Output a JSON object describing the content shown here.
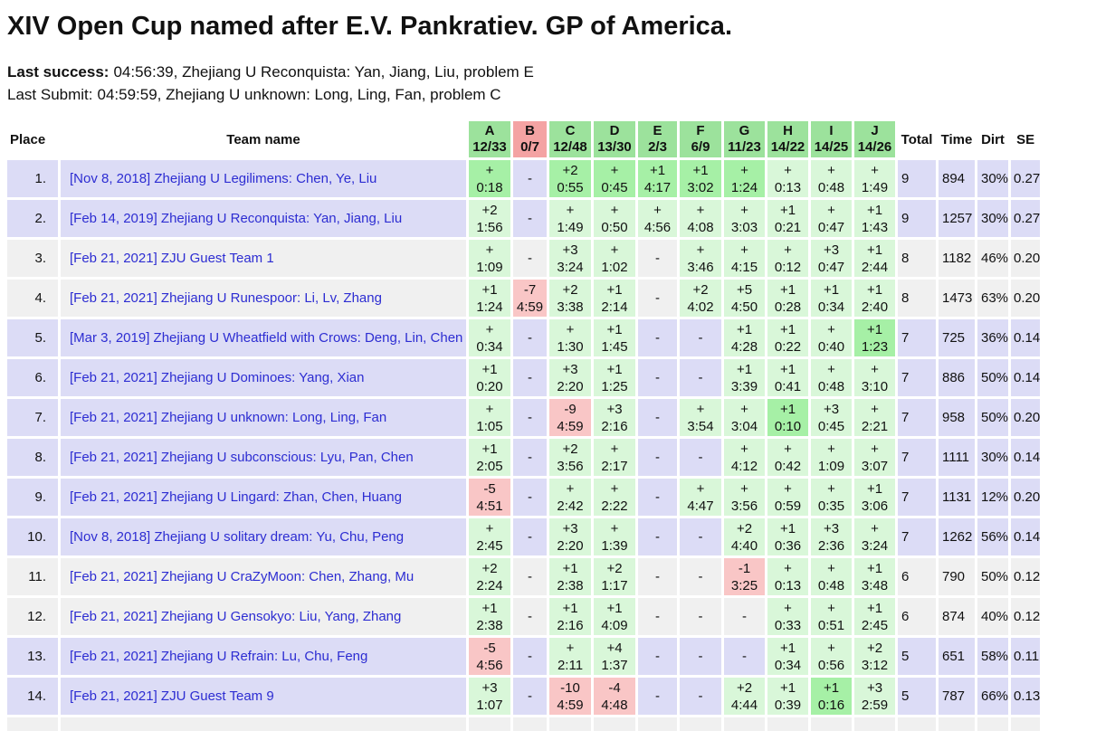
{
  "page": {
    "title": "XIV Open Cup named after E.V. Pankratiev. GP of America.",
    "last_success": {
      "label": "Last success:",
      "text": "04:56:39, Zhejiang U Reconquista: Yan, Jiang, Liu, problem E"
    },
    "last_submit": {
      "label": "Last Submit:",
      "text": "04:59:59, Zhejiang U unknown: Long, Ling, Fan, problem C"
    }
  },
  "colors": {
    "header_solved_green": "#9ce29c",
    "header_unsolved_red": "#f4a3a3",
    "cell_solved_green": "#d9f7d9",
    "cell_first_solved_green": "#a6f0a6",
    "cell_failed_red": "#f9c6c6",
    "row_lavender": "#dcdcf6",
    "row_grey": "#f0f0f0",
    "team_link_blue": "#2d2dd2"
  },
  "table": {
    "headers": {
      "place": "Place",
      "team": "Team name",
      "total": "Total",
      "time": "Time",
      "dirt": "Dirt",
      "se": "SE"
    },
    "problems": [
      {
        "letter": "A",
        "stat": "12/33",
        "state": "solved"
      },
      {
        "letter": "B",
        "stat": "0/7",
        "state": "unsolved"
      },
      {
        "letter": "C",
        "stat": "12/48",
        "state": "solved"
      },
      {
        "letter": "D",
        "stat": "13/30",
        "state": "solved"
      },
      {
        "letter": "E",
        "stat": "2/3",
        "state": "solved"
      },
      {
        "letter": "F",
        "stat": "6/9",
        "state": "solved"
      },
      {
        "letter": "G",
        "stat": "11/23",
        "state": "solved"
      },
      {
        "letter": "H",
        "stat": "14/22",
        "state": "solved"
      },
      {
        "letter": "I",
        "stat": "14/25",
        "state": "solved"
      },
      {
        "letter": "J",
        "stat": "14/26",
        "state": "solved"
      }
    ],
    "rows": [
      {
        "place": "1.",
        "team": "[Nov 8, 2018] Zhejiang U Legilimens: Chen, Ye, Liu",
        "shade": "lav",
        "cells": [
          {
            "m": "+",
            "t": "0:18",
            "s": "first"
          },
          {
            "m": "-",
            "t": "",
            "s": "none"
          },
          {
            "m": "+2",
            "t": "0:55",
            "s": "first"
          },
          {
            "m": "+",
            "t": "0:45",
            "s": "first"
          },
          {
            "m": "+1",
            "t": "4:17",
            "s": "first"
          },
          {
            "m": "+1",
            "t": "3:02",
            "s": "first"
          },
          {
            "m": "+",
            "t": "1:24",
            "s": "first"
          },
          {
            "m": "+",
            "t": "0:13",
            "s": "ok"
          },
          {
            "m": "+",
            "t": "0:48",
            "s": "ok"
          },
          {
            "m": "+",
            "t": "1:49",
            "s": "ok"
          }
        ],
        "total": "9",
        "time": "894",
        "dirt": "30%",
        "se": "0.27"
      },
      {
        "place": "2.",
        "team": "[Feb 14, 2019] Zhejiang U Reconquista: Yan, Jiang, Liu",
        "shade": "lav",
        "cells": [
          {
            "m": "+2",
            "t": "1:56",
            "s": "ok"
          },
          {
            "m": "-",
            "t": "",
            "s": "none"
          },
          {
            "m": "+",
            "t": "1:49",
            "s": "ok"
          },
          {
            "m": "+",
            "t": "0:50",
            "s": "ok"
          },
          {
            "m": "+",
            "t": "4:56",
            "s": "ok"
          },
          {
            "m": "+",
            "t": "4:08",
            "s": "ok"
          },
          {
            "m": "+",
            "t": "3:03",
            "s": "ok"
          },
          {
            "m": "+1",
            "t": "0:21",
            "s": "ok"
          },
          {
            "m": "+",
            "t": "0:47",
            "s": "ok"
          },
          {
            "m": "+1",
            "t": "1:43",
            "s": "ok"
          }
        ],
        "total": "9",
        "time": "1257",
        "dirt": "30%",
        "se": "0.27"
      },
      {
        "place": "3.",
        "team": "[Feb 21, 2021] ZJU Guest Team 1",
        "shade": "grey",
        "cells": [
          {
            "m": "+",
            "t": "1:09",
            "s": "ok"
          },
          {
            "m": "-",
            "t": "",
            "s": "none"
          },
          {
            "m": "+3",
            "t": "3:24",
            "s": "ok"
          },
          {
            "m": "+",
            "t": "1:02",
            "s": "ok"
          },
          {
            "m": "-",
            "t": "",
            "s": "none"
          },
          {
            "m": "+",
            "t": "3:46",
            "s": "ok"
          },
          {
            "m": "+",
            "t": "4:15",
            "s": "ok"
          },
          {
            "m": "+",
            "t": "0:12",
            "s": "ok"
          },
          {
            "m": "+3",
            "t": "0:47",
            "s": "ok"
          },
          {
            "m": "+1",
            "t": "2:44",
            "s": "ok"
          }
        ],
        "total": "8",
        "time": "1182",
        "dirt": "46%",
        "se": "0.20"
      },
      {
        "place": "4.",
        "team": "[Feb 21, 2021] Zhejiang U Runespoor: Li, Lv, Zhang",
        "shade": "grey",
        "cells": [
          {
            "m": "+1",
            "t": "1:24",
            "s": "ok"
          },
          {
            "m": "-7",
            "t": "4:59",
            "s": "fail"
          },
          {
            "m": "+2",
            "t": "3:38",
            "s": "ok"
          },
          {
            "m": "+1",
            "t": "2:14",
            "s": "ok"
          },
          {
            "m": "-",
            "t": "",
            "s": "none"
          },
          {
            "m": "+2",
            "t": "4:02",
            "s": "ok"
          },
          {
            "m": "+5",
            "t": "4:50",
            "s": "ok"
          },
          {
            "m": "+1",
            "t": "0:28",
            "s": "ok"
          },
          {
            "m": "+1",
            "t": "0:34",
            "s": "ok"
          },
          {
            "m": "+1",
            "t": "2:40",
            "s": "ok"
          }
        ],
        "total": "8",
        "time": "1473",
        "dirt": "63%",
        "se": "0.20"
      },
      {
        "place": "5.",
        "team": "[Mar 3, 2019] Zhejiang U Wheatfield with Crows: Deng, Lin, Chen",
        "shade": "lav",
        "cells": [
          {
            "m": "+",
            "t": "0:34",
            "s": "ok"
          },
          {
            "m": "-",
            "t": "",
            "s": "none"
          },
          {
            "m": "+",
            "t": "1:30",
            "s": "ok"
          },
          {
            "m": "+1",
            "t": "1:45",
            "s": "ok"
          },
          {
            "m": "-",
            "t": "",
            "s": "none"
          },
          {
            "m": "-",
            "t": "",
            "s": "none"
          },
          {
            "m": "+1",
            "t": "4:28",
            "s": "ok"
          },
          {
            "m": "+1",
            "t": "0:22",
            "s": "ok"
          },
          {
            "m": "+",
            "t": "0:40",
            "s": "ok"
          },
          {
            "m": "+1",
            "t": "1:23",
            "s": "first"
          }
        ],
        "total": "7",
        "time": "725",
        "dirt": "36%",
        "se": "0.14"
      },
      {
        "place": "6.",
        "team": "[Feb 21, 2021] Zhejiang U Dominoes: Yang, Xian",
        "shade": "lav",
        "cells": [
          {
            "m": "+1",
            "t": "0:20",
            "s": "ok"
          },
          {
            "m": "-",
            "t": "",
            "s": "none"
          },
          {
            "m": "+3",
            "t": "2:20",
            "s": "ok"
          },
          {
            "m": "+1",
            "t": "1:25",
            "s": "ok"
          },
          {
            "m": "-",
            "t": "",
            "s": "none"
          },
          {
            "m": "-",
            "t": "",
            "s": "none"
          },
          {
            "m": "+1",
            "t": "3:39",
            "s": "ok"
          },
          {
            "m": "+1",
            "t": "0:41",
            "s": "ok"
          },
          {
            "m": "+",
            "t": "0:48",
            "s": "ok"
          },
          {
            "m": "+",
            "t": "3:10",
            "s": "ok"
          }
        ],
        "total": "7",
        "time": "886",
        "dirt": "50%",
        "se": "0.14"
      },
      {
        "place": "7.",
        "team": "[Feb 21, 2021] Zhejiang U unknown: Long, Ling, Fan",
        "shade": "lav",
        "cells": [
          {
            "m": "+",
            "t": "1:05",
            "s": "ok"
          },
          {
            "m": "-",
            "t": "",
            "s": "none"
          },
          {
            "m": "-9",
            "t": "4:59",
            "s": "fail"
          },
          {
            "m": "+3",
            "t": "2:16",
            "s": "ok"
          },
          {
            "m": "-",
            "t": "",
            "s": "none"
          },
          {
            "m": "+",
            "t": "3:54",
            "s": "ok"
          },
          {
            "m": "+",
            "t": "3:04",
            "s": "ok"
          },
          {
            "m": "+1",
            "t": "0:10",
            "s": "first"
          },
          {
            "m": "+3",
            "t": "0:45",
            "s": "ok"
          },
          {
            "m": "+",
            "t": "2:21",
            "s": "ok"
          }
        ],
        "total": "7",
        "time": "958",
        "dirt": "50%",
        "se": "0.20"
      },
      {
        "place": "8.",
        "team": "[Feb 21, 2021] Zhejiang U subconscious: Lyu, Pan, Chen",
        "shade": "lav",
        "cells": [
          {
            "m": "+1",
            "t": "2:05",
            "s": "ok"
          },
          {
            "m": "-",
            "t": "",
            "s": "none"
          },
          {
            "m": "+2",
            "t": "3:56",
            "s": "ok"
          },
          {
            "m": "+",
            "t": "2:17",
            "s": "ok"
          },
          {
            "m": "-",
            "t": "",
            "s": "none"
          },
          {
            "m": "-",
            "t": "",
            "s": "none"
          },
          {
            "m": "+",
            "t": "4:12",
            "s": "ok"
          },
          {
            "m": "+",
            "t": "0:42",
            "s": "ok"
          },
          {
            "m": "+",
            "t": "1:09",
            "s": "ok"
          },
          {
            "m": "+",
            "t": "3:07",
            "s": "ok"
          }
        ],
        "total": "7",
        "time": "1111",
        "dirt": "30%",
        "se": "0.14"
      },
      {
        "place": "9.",
        "team": "[Feb 21, 2021] Zhejiang U Lingard: Zhan, Chen, Huang",
        "shade": "lav",
        "cells": [
          {
            "m": "-5",
            "t": "4:51",
            "s": "fail"
          },
          {
            "m": "-",
            "t": "",
            "s": "none"
          },
          {
            "m": "+",
            "t": "2:42",
            "s": "ok"
          },
          {
            "m": "+",
            "t": "2:22",
            "s": "ok"
          },
          {
            "m": "-",
            "t": "",
            "s": "none"
          },
          {
            "m": "+",
            "t": "4:47",
            "s": "ok"
          },
          {
            "m": "+",
            "t": "3:56",
            "s": "ok"
          },
          {
            "m": "+",
            "t": "0:59",
            "s": "ok"
          },
          {
            "m": "+",
            "t": "0:35",
            "s": "ok"
          },
          {
            "m": "+1",
            "t": "3:06",
            "s": "ok"
          }
        ],
        "total": "7",
        "time": "1131",
        "dirt": "12%",
        "se": "0.20"
      },
      {
        "place": "10.",
        "team": "[Nov 8, 2018] Zhejiang U solitary dream: Yu, Chu, Peng",
        "shade": "lav",
        "cells": [
          {
            "m": "+",
            "t": "2:45",
            "s": "ok"
          },
          {
            "m": "-",
            "t": "",
            "s": "none"
          },
          {
            "m": "+3",
            "t": "2:20",
            "s": "ok"
          },
          {
            "m": "+",
            "t": "1:39",
            "s": "ok"
          },
          {
            "m": "-",
            "t": "",
            "s": "none"
          },
          {
            "m": "-",
            "t": "",
            "s": "none"
          },
          {
            "m": "+2",
            "t": "4:40",
            "s": "ok"
          },
          {
            "m": "+1",
            "t": "0:36",
            "s": "ok"
          },
          {
            "m": "+3",
            "t": "2:36",
            "s": "ok"
          },
          {
            "m": "+",
            "t": "3:24",
            "s": "ok"
          }
        ],
        "total": "7",
        "time": "1262",
        "dirt": "56%",
        "se": "0.14"
      },
      {
        "place": "11.",
        "team": "[Feb 21, 2021] Zhejiang U CraZyMoon: Chen, Zhang, Mu",
        "shade": "grey",
        "cells": [
          {
            "m": "+2",
            "t": "2:24",
            "s": "ok"
          },
          {
            "m": "-",
            "t": "",
            "s": "none"
          },
          {
            "m": "+1",
            "t": "2:38",
            "s": "ok"
          },
          {
            "m": "+2",
            "t": "1:17",
            "s": "ok"
          },
          {
            "m": "-",
            "t": "",
            "s": "none"
          },
          {
            "m": "-",
            "t": "",
            "s": "none"
          },
          {
            "m": "-1",
            "t": "3:25",
            "s": "fail"
          },
          {
            "m": "+",
            "t": "0:13",
            "s": "ok"
          },
          {
            "m": "+",
            "t": "0:48",
            "s": "ok"
          },
          {
            "m": "+1",
            "t": "3:48",
            "s": "ok"
          }
        ],
        "total": "6",
        "time": "790",
        "dirt": "50%",
        "se": "0.12"
      },
      {
        "place": "12.",
        "team": "[Feb 21, 2021] Zhejiang U Gensokyo: Liu, Yang, Zhang",
        "shade": "grey",
        "cells": [
          {
            "m": "+1",
            "t": "2:38",
            "s": "ok"
          },
          {
            "m": "-",
            "t": "",
            "s": "none"
          },
          {
            "m": "+1",
            "t": "2:16",
            "s": "ok"
          },
          {
            "m": "+1",
            "t": "4:09",
            "s": "ok"
          },
          {
            "m": "-",
            "t": "",
            "s": "none"
          },
          {
            "m": "-",
            "t": "",
            "s": "none"
          },
          {
            "m": "-",
            "t": "",
            "s": "none"
          },
          {
            "m": "+",
            "t": "0:33",
            "s": "ok"
          },
          {
            "m": "+",
            "t": "0:51",
            "s": "ok"
          },
          {
            "m": "+1",
            "t": "2:45",
            "s": "ok"
          }
        ],
        "total": "6",
        "time": "874",
        "dirt": "40%",
        "se": "0.12"
      },
      {
        "place": "13.",
        "team": "[Feb 21, 2021] Zhejiang U Refrain: Lu, Chu, Feng",
        "shade": "lav",
        "cells": [
          {
            "m": "-5",
            "t": "4:56",
            "s": "fail"
          },
          {
            "m": "-",
            "t": "",
            "s": "none"
          },
          {
            "m": "+",
            "t": "2:11",
            "s": "ok"
          },
          {
            "m": "+4",
            "t": "1:37",
            "s": "ok"
          },
          {
            "m": "-",
            "t": "",
            "s": "none"
          },
          {
            "m": "-",
            "t": "",
            "s": "none"
          },
          {
            "m": "-",
            "t": "",
            "s": "none"
          },
          {
            "m": "+1",
            "t": "0:34",
            "s": "ok"
          },
          {
            "m": "+",
            "t": "0:56",
            "s": "ok"
          },
          {
            "m": "+2",
            "t": "3:12",
            "s": "ok"
          }
        ],
        "total": "5",
        "time": "651",
        "dirt": "58%",
        "se": "0.11"
      },
      {
        "place": "14.",
        "team": "[Feb 21, 2021] ZJU Guest Team 9",
        "shade": "lav",
        "cells": [
          {
            "m": "+3",
            "t": "1:07",
            "s": "ok"
          },
          {
            "m": "-",
            "t": "",
            "s": "none"
          },
          {
            "m": "-10",
            "t": "4:59",
            "s": "fail"
          },
          {
            "m": "-4",
            "t": "4:48",
            "s": "fail"
          },
          {
            "m": "-",
            "t": "",
            "s": "none"
          },
          {
            "m": "-",
            "t": "",
            "s": "none"
          },
          {
            "m": "+2",
            "t": "4:44",
            "s": "ok"
          },
          {
            "m": "+1",
            "t": "0:39",
            "s": "ok"
          },
          {
            "m": "+1",
            "t": "0:16",
            "s": "first"
          },
          {
            "m": "+3",
            "t": "2:59",
            "s": "ok"
          }
        ],
        "total": "5",
        "time": "787",
        "dirt": "66%",
        "se": "0.13"
      }
    ],
    "partial_row": {
      "shade": "grey"
    }
  }
}
